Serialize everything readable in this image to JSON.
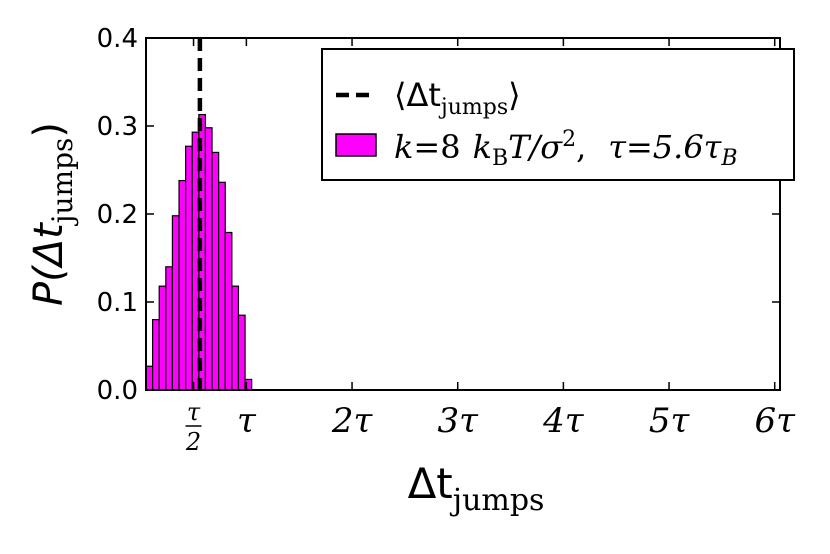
{
  "chart_data": {
    "type": "bar",
    "title": "",
    "xlabel": {
      "base": "Δt",
      "sub": "jumps"
    },
    "ylabel": {
      "prefix": "P(Δt",
      "sub": "jumps",
      "suffix": ")"
    },
    "xlim": [
      0.05,
      6.05
    ],
    "ylim": [
      0,
      0.4
    ],
    "yticks": [
      "0.0",
      "0.1",
      "0.2",
      "0.3",
      "0.4"
    ],
    "yticks_values": [
      0.0,
      0.1,
      0.2,
      0.3,
      0.4
    ],
    "xticks": [
      {
        "value": 0.5,
        "num": "τ",
        "den": "2",
        "frac": true
      },
      {
        "value": 1,
        "label": "τ"
      },
      {
        "value": 2,
        "label": "2τ"
      },
      {
        "value": 3,
        "label": "3τ"
      },
      {
        "value": 4,
        "label": "4τ"
      },
      {
        "value": 5,
        "label": "5τ"
      },
      {
        "value": 6,
        "label": "6τ"
      }
    ],
    "grid": false,
    "legend_position": "top-right",
    "bar_color": "#ff00ff",
    "mean_line": {
      "x": 0.56,
      "style": "dashed",
      "color": "#000000"
    },
    "series": [
      {
        "name": "k=8 kBT/σ², τ=5.6τB",
        "bin_width": 0.0625,
        "bin_starts": [
          0.05,
          0.1125,
          0.175,
          0.2375,
          0.3,
          0.3625,
          0.425,
          0.4875,
          0.55,
          0.6125,
          0.675,
          0.7375,
          0.8,
          0.8625,
          0.925,
          0.9875
        ],
        "values": [
          0.027,
          0.08,
          0.118,
          0.14,
          0.198,
          0.238,
          0.277,
          0.293,
          0.313,
          0.298,
          0.27,
          0.236,
          0.179,
          0.118,
          0.085,
          0.012
        ]
      }
    ],
    "legend": {
      "mean_entry": {
        "open": "⟨",
        "base": "Δt",
        "sub": "jumps",
        "close": "⟩"
      },
      "hist_entry": {
        "k_lhs": "k",
        "k_eq": "=8",
        "kb": "k",
        "kb_sub": "B",
        "T": "T",
        "slash": "/σ",
        "sup": "2",
        "comma": ",",
        "tau": "τ",
        "tau_eq": "=5.6τ",
        "tau_sub": "B"
      }
    }
  }
}
